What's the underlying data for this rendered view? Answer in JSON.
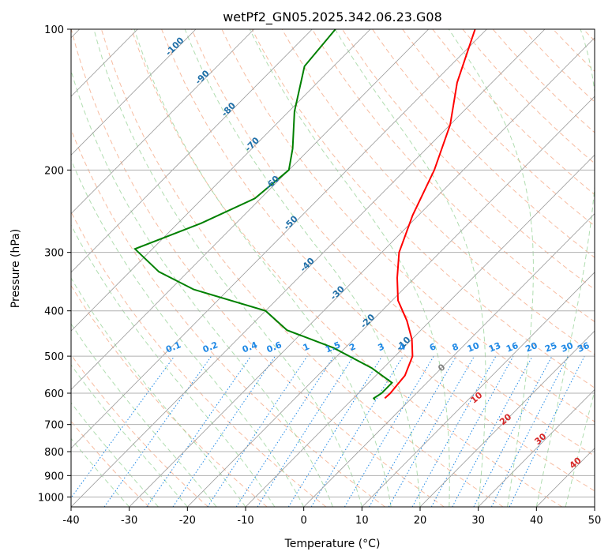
{
  "chart_data": {
    "type": "line",
    "title": "wetPf2_GN05.2025.342.06.23.G08",
    "xlabel": "Temperature (°C)",
    "ylabel": "Pressure (hPa)",
    "xlim": [
      -40,
      50
    ],
    "ylim": [
      1050,
      100
    ],
    "y_scale": "log",
    "x_ticks": [
      -40,
      -30,
      -20,
      -10,
      0,
      10,
      20,
      30,
      40,
      50
    ],
    "y_ticks": [
      100,
      200,
      300,
      400,
      500,
      600,
      700,
      800,
      900,
      1000
    ],
    "skew_note": "skewed temperature axis",
    "grid": true,
    "colors": {
      "temperature": "#ff0000",
      "dewpoint": "#008000",
      "isotherm_labels": "#1f6fa8",
      "mixing_ratio": "#1e88e5",
      "dry_adiabat": "#f4a582",
      "moist_adiabat": "#8fcf8f",
      "wetbulb_label": "#d62728"
    },
    "isotherm_labels": [
      {
        "text": "-100",
        "t": -100
      },
      {
        "text": "-90",
        "t": -90
      },
      {
        "text": "-80",
        "t": -80
      },
      {
        "text": "-70",
        "t": -70
      },
      {
        "text": "-60",
        "t": -60
      },
      {
        "text": "-50",
        "t": -50
      },
      {
        "text": "-40",
        "t": -40
      },
      {
        "text": "-30",
        "t": -30
      },
      {
        "text": "-20",
        "t": -20
      },
      {
        "text": "-10",
        "t": -10
      }
    ],
    "mixing_ratio_labels": [
      "0.1",
      "0.2",
      "0.4",
      "0.6",
      "1",
      "1.5",
      "2",
      "3",
      "4",
      "6",
      "8",
      "10",
      "13",
      "16",
      "20",
      "25",
      "30",
      "36"
    ],
    "wetbulb_labels": [
      "0",
      "10",
      "20",
      "30",
      "40"
    ],
    "series": [
      {
        "label": "temperature",
        "points": [
          {
            "p": 100,
            "t": -52
          },
          {
            "p": 130,
            "t": -46
          },
          {
            "p": 160,
            "t": -40
          },
          {
            "p": 200,
            "t": -35
          },
          {
            "p": 250,
            "t": -31
          },
          {
            "p": 300,
            "t": -27
          },
          {
            "p": 340,
            "t": -23
          },
          {
            "p": 380,
            "t": -19
          },
          {
            "p": 420,
            "t": -14
          },
          {
            "p": 460,
            "t": -10
          },
          {
            "p": 500,
            "t": -7
          },
          {
            "p": 550,
            "t": -5
          },
          {
            "p": 600,
            "t": -4.5
          },
          {
            "p": 615,
            "t": -4.6
          }
        ]
      },
      {
        "label": "dewpoint",
        "points": [
          {
            "p": 100,
            "t": -76
          },
          {
            "p": 120,
            "t": -75
          },
          {
            "p": 150,
            "t": -69
          },
          {
            "p": 180,
            "t": -63
          },
          {
            "p": 200,
            "t": -60
          },
          {
            "p": 230,
            "t": -61
          },
          {
            "p": 260,
            "t": -66
          },
          {
            "p": 295,
            "t": -73
          },
          {
            "p": 330,
            "t": -65
          },
          {
            "p": 360,
            "t": -56
          },
          {
            "p": 400,
            "t": -40
          },
          {
            "p": 440,
            "t": -33
          },
          {
            "p": 480,
            "t": -22
          },
          {
            "p": 530,
            "t": -12
          },
          {
            "p": 570,
            "t": -6
          },
          {
            "p": 600,
            "t": -6
          },
          {
            "p": 615,
            "t": -6.5
          },
          {
            "p": 620,
            "t": -6
          }
        ]
      }
    ]
  }
}
